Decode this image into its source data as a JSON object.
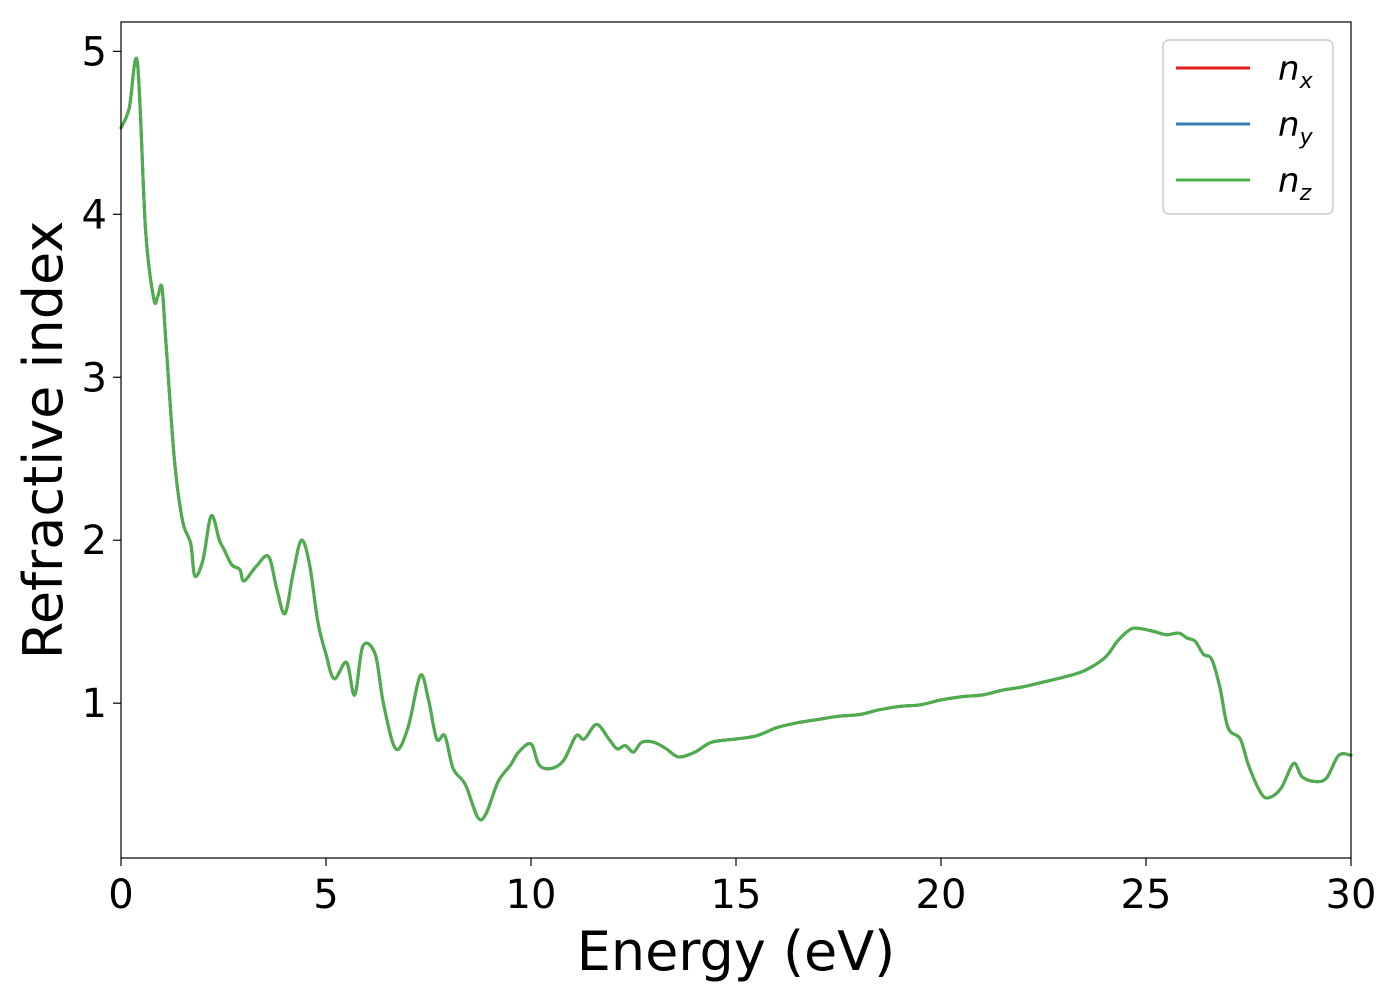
{
  "chart_data": {
    "type": "line",
    "title": "",
    "xlabel": "Energy (eV)",
    "ylabel": "Refractive index",
    "xlim": [
      0,
      30
    ],
    "ylim": [
      0.05,
      5.18
    ],
    "xticks": [
      "0",
      "5",
      "10",
      "15",
      "20",
      "25",
      "30"
    ],
    "yticks": [
      "1",
      "2",
      "3",
      "4",
      "5"
    ],
    "grid": false,
    "legend_position": "top-right",
    "x": [
      0,
      0.2,
      0.4,
      0.6,
      0.8,
      0.9,
      1.0,
      1.1,
      1.3,
      1.5,
      1.7,
      1.8,
      2.0,
      2.2,
      2.4,
      2.5,
      2.7,
      2.9,
      3.0,
      3.3,
      3.6,
      3.8,
      4.0,
      4.2,
      4.4,
      4.6,
      4.8,
      5.0,
      5.2,
      5.5,
      5.7,
      5.9,
      6.2,
      6.4,
      6.7,
      7.0,
      7.3,
      7.5,
      7.7,
      7.9,
      8.1,
      8.4,
      8.7,
      8.9,
      9.2,
      9.5,
      9.7,
      10.0,
      10.2,
      10.5,
      10.8,
      11.1,
      11.3,
      11.6,
      11.9,
      12.1,
      12.3,
      12.5,
      12.7,
      13.0,
      13.3,
      13.6,
      14.0,
      14.4,
      15.0,
      15.5,
      16.0,
      16.5,
      17.0,
      17.5,
      18.0,
      18.5,
      19.0,
      19.5,
      20.0,
      20.5,
      21.0,
      21.5,
      22.0,
      22.5,
      23.0,
      23.5,
      24.0,
      24.3,
      24.6,
      24.8,
      25.2,
      25.5,
      25.8,
      26.0,
      26.2,
      26.4,
      26.6,
      26.8,
      27.0,
      27.3,
      27.5,
      27.8,
      28.0,
      28.3,
      28.6,
      28.8,
      29.1,
      29.4,
      29.7,
      30.0
    ],
    "series": [
      {
        "name": "n_x",
        "label_base": "n",
        "label_sub": "x",
        "color": "#e41a1c",
        "y": [
          4.53,
          4.65,
          4.93,
          3.9,
          3.48,
          3.5,
          3.55,
          3.2,
          2.5,
          2.12,
          1.98,
          1.78,
          1.88,
          2.15,
          2.0,
          1.95,
          1.85,
          1.82,
          1.75,
          1.84,
          1.9,
          1.7,
          1.55,
          1.8,
          2.0,
          1.85,
          1.5,
          1.3,
          1.15,
          1.25,
          1.05,
          1.35,
          1.3,
          1.0,
          0.72,
          0.85,
          1.17,
          1.02,
          0.78,
          0.8,
          0.6,
          0.5,
          0.3,
          0.32,
          0.52,
          0.62,
          0.7,
          0.75,
          0.62,
          0.6,
          0.65,
          0.8,
          0.78,
          0.87,
          0.78,
          0.72,
          0.74,
          0.7,
          0.76,
          0.76,
          0.72,
          0.67,
          0.7,
          0.76,
          0.78,
          0.8,
          0.85,
          0.88,
          0.9,
          0.92,
          0.93,
          0.96,
          0.98,
          0.99,
          1.02,
          1.04,
          1.05,
          1.08,
          1.1,
          1.13,
          1.16,
          1.2,
          1.28,
          1.38,
          1.45,
          1.46,
          1.44,
          1.42,
          1.43,
          1.4,
          1.38,
          1.3,
          1.27,
          1.1,
          0.85,
          0.78,
          0.62,
          0.45,
          0.42,
          0.48,
          0.63,
          0.55,
          0.52,
          0.54,
          0.68,
          0.68
        ]
      },
      {
        "name": "n_y",
        "label_base": "n",
        "label_sub": "y",
        "color": "#377eb8",
        "y": [
          4.53,
          4.65,
          4.93,
          3.9,
          3.48,
          3.5,
          3.55,
          3.2,
          2.5,
          2.12,
          1.98,
          1.78,
          1.88,
          2.15,
          2.0,
          1.95,
          1.85,
          1.82,
          1.75,
          1.84,
          1.9,
          1.7,
          1.55,
          1.8,
          2.0,
          1.85,
          1.5,
          1.3,
          1.15,
          1.25,
          1.05,
          1.35,
          1.3,
          1.0,
          0.72,
          0.85,
          1.17,
          1.02,
          0.78,
          0.8,
          0.6,
          0.5,
          0.3,
          0.32,
          0.52,
          0.62,
          0.7,
          0.75,
          0.62,
          0.6,
          0.65,
          0.8,
          0.78,
          0.87,
          0.78,
          0.72,
          0.74,
          0.7,
          0.76,
          0.76,
          0.72,
          0.67,
          0.7,
          0.76,
          0.78,
          0.8,
          0.85,
          0.88,
          0.9,
          0.92,
          0.93,
          0.96,
          0.98,
          0.99,
          1.02,
          1.04,
          1.05,
          1.08,
          1.1,
          1.13,
          1.16,
          1.2,
          1.28,
          1.38,
          1.45,
          1.46,
          1.44,
          1.42,
          1.43,
          1.4,
          1.38,
          1.3,
          1.27,
          1.1,
          0.85,
          0.78,
          0.62,
          0.45,
          0.42,
          0.48,
          0.63,
          0.55,
          0.52,
          0.54,
          0.68,
          0.68
        ]
      },
      {
        "name": "n_z",
        "label_base": "n",
        "label_sub": "z",
        "color": "#4daf4a",
        "y": [
          4.53,
          4.65,
          4.93,
          3.9,
          3.48,
          3.5,
          3.55,
          3.2,
          2.5,
          2.12,
          1.98,
          1.78,
          1.88,
          2.15,
          2.0,
          1.95,
          1.85,
          1.82,
          1.75,
          1.84,
          1.9,
          1.7,
          1.55,
          1.8,
          2.0,
          1.85,
          1.5,
          1.3,
          1.15,
          1.25,
          1.05,
          1.35,
          1.3,
          1.0,
          0.72,
          0.85,
          1.17,
          1.02,
          0.78,
          0.8,
          0.6,
          0.5,
          0.3,
          0.32,
          0.52,
          0.62,
          0.7,
          0.75,
          0.62,
          0.6,
          0.65,
          0.8,
          0.78,
          0.87,
          0.78,
          0.72,
          0.74,
          0.7,
          0.76,
          0.76,
          0.72,
          0.67,
          0.7,
          0.76,
          0.78,
          0.8,
          0.85,
          0.88,
          0.9,
          0.92,
          0.93,
          0.96,
          0.98,
          0.99,
          1.02,
          1.04,
          1.05,
          1.08,
          1.1,
          1.13,
          1.16,
          1.2,
          1.28,
          1.38,
          1.45,
          1.46,
          1.44,
          1.42,
          1.43,
          1.4,
          1.38,
          1.3,
          1.27,
          1.1,
          0.85,
          0.78,
          0.62,
          0.45,
          0.42,
          0.48,
          0.63,
          0.55,
          0.52,
          0.54,
          0.68,
          0.68
        ]
      }
    ]
  }
}
